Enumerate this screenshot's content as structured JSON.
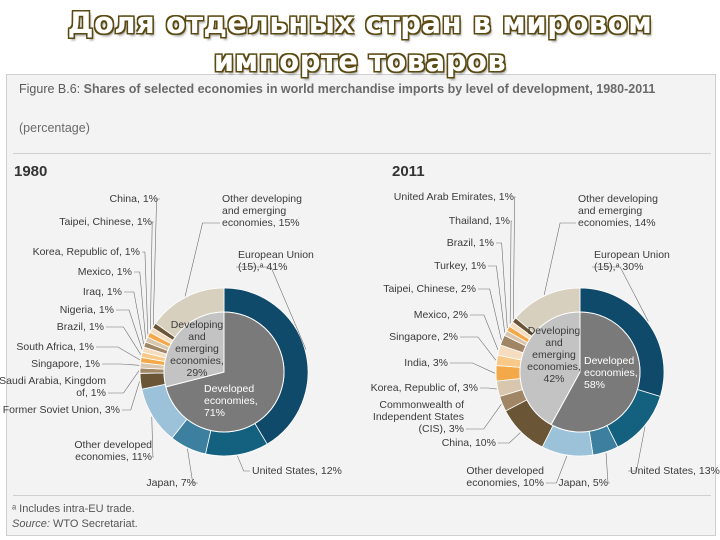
{
  "slide": {
    "title_line1": "Доля отдельных стран в мировом",
    "title_line2": "импорте товаров"
  },
  "figure": {
    "caption_prefix": "Figure B.6: ",
    "caption_bold": "Shares of selected economies in world merchandise imports by level of development, 1980-2011",
    "unit": "(percentage)",
    "footnote_a": "ᵃ Includes intra-EU trade.",
    "source_label": "Source:",
    "source_text": " WTO Secretariat."
  },
  "colors": {
    "developed_inner": "#7a7a7a",
    "developing_inner": "#c3c3c3",
    "eu": "#0f4a6b",
    "us": "#13607f",
    "japan": "#3c7f9f",
    "other_developed": "#9cc2d9",
    "brown_dark": "#6b5537",
    "brown_mid": "#a08665",
    "tan": "#d8c7ae",
    "orange": "#f3a94a",
    "orange_light": "#f8c989",
    "peach": "#f6ddbf",
    "other_developing": "#d8d0be",
    "leader": "#6e6e6e"
  },
  "chart_data": [
    {
      "type": "pie",
      "title": "1980",
      "inner_ring": [
        {
          "label": "Developed economies, 71%",
          "value": 71
        },
        {
          "label": "Developing and emerging economies, 29%",
          "value": 29
        }
      ],
      "outer_ring": [
        {
          "label": "European Union (15),ᵃ 41%",
          "value": 41
        },
        {
          "label": "United States, 12%",
          "value": 12
        },
        {
          "label": "Japan, 7%",
          "value": 7
        },
        {
          "label": "Other developed economies, 11%",
          "value": 11
        },
        {
          "label": "Former Soviet Union, 3%",
          "value": 3
        },
        {
          "label": "Saudi Arabia, Kingdom of, 1%",
          "value": 1
        },
        {
          "label": "Singapore, 1%",
          "value": 1
        },
        {
          "label": "South Africa, 1%",
          "value": 1
        },
        {
          "label": "Brazil, 1%",
          "value": 1
        },
        {
          "label": "Nigeria, 1%",
          "value": 1
        },
        {
          "label": "Iraq, 1%",
          "value": 1
        },
        {
          "label": "Mexico, 1%",
          "value": 1
        },
        {
          "label": "Korea, Republic of, 1%",
          "value": 1
        },
        {
          "label": "Taipei, Chinese, 1%",
          "value": 1
        },
        {
          "label": "China, 1%",
          "value": 1
        },
        {
          "label": "Other developing and emerging economies, 15%",
          "value": 15
        }
      ]
    },
    {
      "type": "pie",
      "title": "2011",
      "inner_ring": [
        {
          "label": "Developed economies, 58%",
          "value": 58
        },
        {
          "label": "Developing and emerging economies, 42%",
          "value": 42
        }
      ],
      "outer_ring": [
        {
          "label": "European Union (15),ᵃ 30%",
          "value": 30
        },
        {
          "label": "United States, 13%",
          "value": 13
        },
        {
          "label": "Japan, 5%",
          "value": 5
        },
        {
          "label": "Other developed economies, 10%",
          "value": 10
        },
        {
          "label": "China, 10%",
          "value": 10
        },
        {
          "label": "Commonwealth of Independent States (CIS), 3%",
          "value": 3
        },
        {
          "label": "Korea, Republic of, 3%",
          "value": 3
        },
        {
          "label": "India, 3%",
          "value": 3
        },
        {
          "label": "Singapore, 2%",
          "value": 2
        },
        {
          "label": "Mexico, 2%",
          "value": 2
        },
        {
          "label": "Taipei, Chinese, 2%",
          "value": 2
        },
        {
          "label": "Turkey, 1%",
          "value": 1
        },
        {
          "label": "Brazil, 1%",
          "value": 1
        },
        {
          "label": "Thailand, 1%",
          "value": 1
        },
        {
          "label": "United Arab Emirates, 1%",
          "value": 1
        },
        {
          "label": "Other developing and emerging economies, 14%",
          "value": 14
        }
      ]
    }
  ]
}
